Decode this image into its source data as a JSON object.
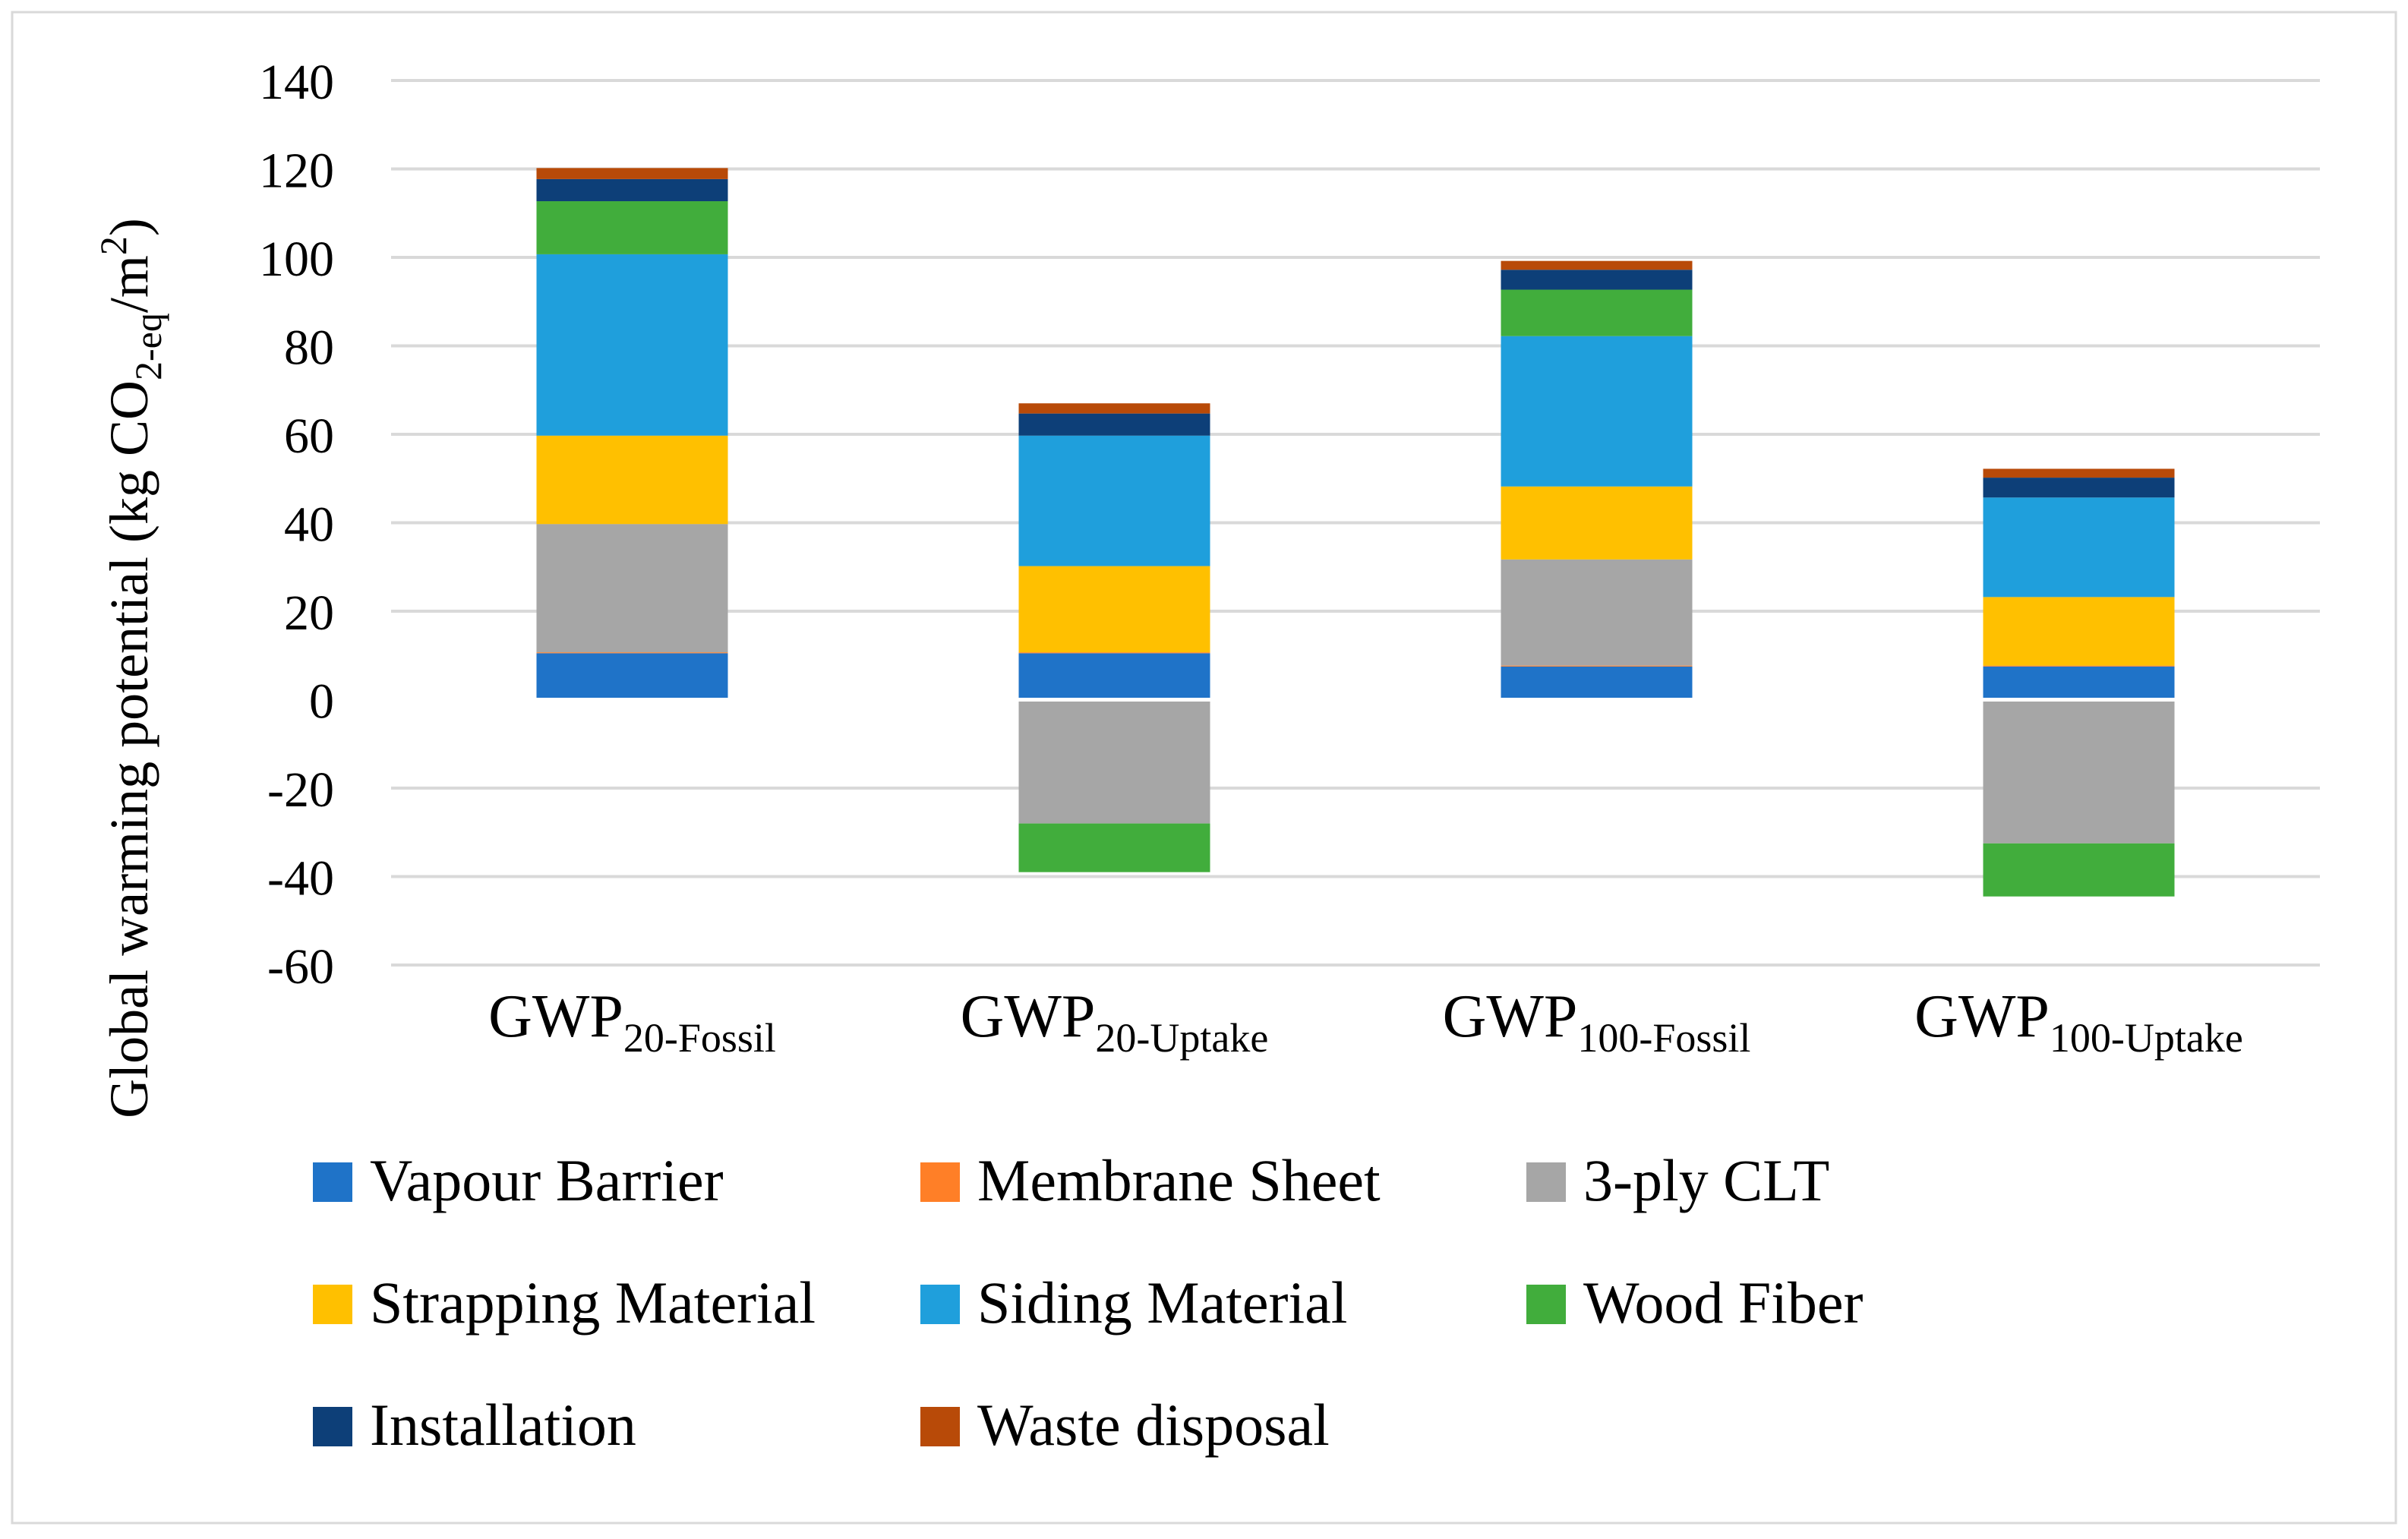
{
  "chart_data": {
    "type": "stacked-bar",
    "title": "",
    "xlabel": "",
    "ylabel": {
      "prefix": "Global warming potential (kg CO",
      "sub": "2-eq",
      "middle": "/m",
      "sup": "2",
      "suffix": ")"
    },
    "ylim": [
      -60,
      140
    ],
    "yticks": [
      140,
      120,
      100,
      80,
      60,
      40,
      20,
      0,
      -20,
      -40,
      -60
    ],
    "ytick_labels": [
      "140",
      "120",
      "100",
      "80",
      "60",
      "40",
      "20",
      "0",
      "-20",
      "-40",
      "-60"
    ],
    "grid": true,
    "legend_position": "bottom",
    "categories": [
      {
        "main": "GWP",
        "sub": "20-Fossil"
      },
      {
        "main": "GWP",
        "sub": "20-Uptake"
      },
      {
        "main": "GWP",
        "sub": "100-Fossil"
      },
      {
        "main": "GWP",
        "sub": "100-Uptake"
      }
    ],
    "series": [
      {
        "name": "Vapour Barrier",
        "color": "#1F73C8",
        "values": [
          10.5,
          10.5,
          7.5,
          7.5
        ]
      },
      {
        "name": "Membrane Sheet",
        "color": "#FF7F27",
        "values": [
          0.2,
          0.2,
          0.2,
          0.2
        ]
      },
      {
        "name": "3-ply CLT",
        "color": "#A6A6A6",
        "values": [
          29,
          -28,
          24,
          -32.5
        ]
      },
      {
        "name": "Strapping Material",
        "color": "#FFC000",
        "values": [
          20,
          19.5,
          16.5,
          15.5
        ]
      },
      {
        "name": "Siding Material",
        "color": "#1F9FDC",
        "values": [
          41,
          29.5,
          34,
          22.5
        ]
      },
      {
        "name": "Wood Fiber",
        "color": "#41AD3C",
        "values": [
          12,
          -11,
          10.5,
          -12
        ]
      },
      {
        "name": "Installation",
        "color": "#0D3F78",
        "values": [
          5,
          5,
          4.5,
          4.5
        ]
      },
      {
        "name": "Waste disposal",
        "color": "#B84A08",
        "values": [
          2.5,
          2.3,
          2,
          2
        ]
      }
    ]
  }
}
